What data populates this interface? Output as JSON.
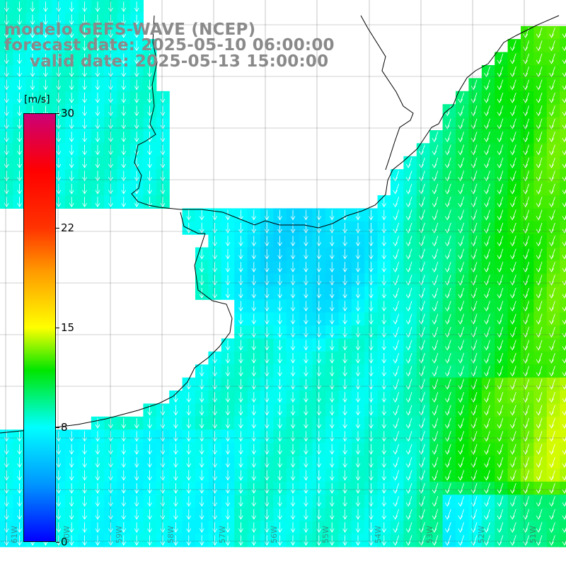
{
  "title": {
    "line1": "modelo GEFS-WAVE (NCEP)",
    "line2": "forecast date: 2025-05-10 06:00:00",
    "line3": "valid date: 2025-05-13 15:00:00"
  },
  "colorbar": {
    "unit": "[m/s]",
    "ticks": [
      "30",
      "22",
      "15",
      "8",
      "0"
    ],
    "tick_values": [
      30,
      22,
      15,
      8,
      0
    ],
    "min": 0,
    "max": 30,
    "colors": {
      "c0": "#0000ff",
      "c4": "#0096ff",
      "c8": "#00ffff",
      "c12": "#00e600",
      "c15": "#ffff00",
      "c19": "#ff9900",
      "c22": "#ff3300",
      "c26": "#ff0000",
      "c30": "#cc0077"
    }
  },
  "map": {
    "land_color": "#ffffff",
    "grid": true,
    "wind_direction": "south",
    "longitude_labels": [
      "61W",
      "60W",
      "59W",
      "58W",
      "57W",
      "56W",
      "55W",
      "54W",
      "53W",
      "52W",
      "51W"
    ]
  }
}
